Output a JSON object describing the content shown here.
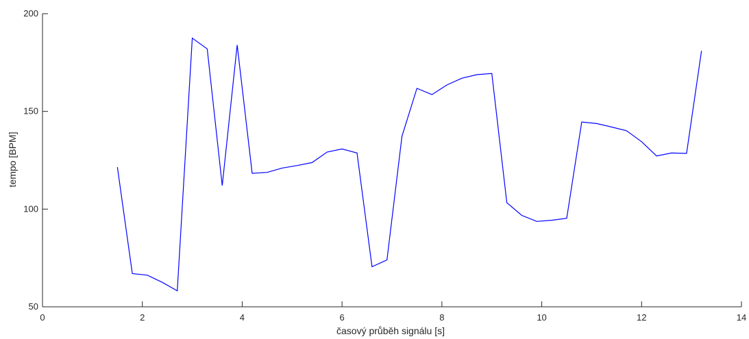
{
  "chart_data": {
    "type": "line",
    "title": "",
    "xlabel": "časový průběh signálu [s]",
    "ylabel": "tempo [BPM]",
    "xlim": [
      0,
      14
    ],
    "ylim": [
      50,
      200
    ],
    "xticks": [
      0,
      2,
      4,
      6,
      8,
      10,
      12,
      14
    ],
    "yticks": [
      50,
      100,
      150,
      200
    ],
    "grid": false,
    "legend": "none",
    "series": [
      {
        "color": "#0000ff",
        "x": [
          1.5,
          1.8,
          2.1,
          2.4,
          2.7,
          3.0,
          3.3,
          3.6,
          3.9,
          4.2,
          4.5,
          4.8,
          5.1,
          5.4,
          5.7,
          6.0,
          6.3,
          6.6,
          6.9,
          7.2,
          7.5,
          7.8,
          8.1,
          8.4,
          8.7,
          9.0,
          9.3,
          9.6,
          9.9,
          10.2,
          10.5,
          10.8,
          11.1,
          11.4,
          11.7,
          12.0,
          12.3,
          12.6,
          12.9,
          13.2
        ],
        "y": [
          121.5,
          67.0,
          66.2,
          62.5,
          58.2,
          187.5,
          182.0,
          112.0,
          184.0,
          118.3,
          118.8,
          121.0,
          122.3,
          123.8,
          129.2,
          130.8,
          128.7,
          70.5,
          74.0,
          137.3,
          161.8,
          158.6,
          163.5,
          167.0,
          168.8,
          169.4,
          103.3,
          96.8,
          93.7,
          94.3,
          95.3,
          144.6,
          143.8,
          142.0,
          140.1,
          134.5,
          127.2,
          128.7,
          128.5,
          181.0
        ]
      }
    ]
  }
}
